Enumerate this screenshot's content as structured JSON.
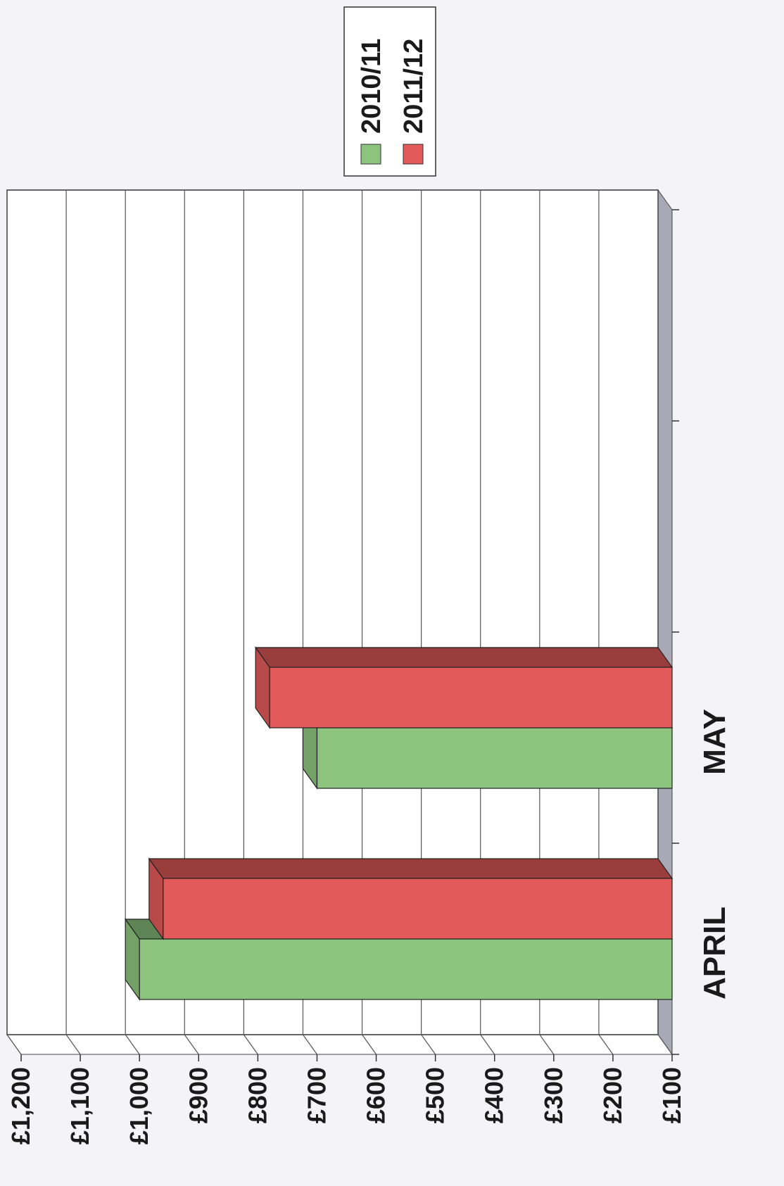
{
  "chart_data": {
    "type": "bar",
    "orientation": "rotated-90-clockwise",
    "style": "3d",
    "categories": [
      "APRIL",
      "MAY"
    ],
    "series": [
      {
        "name": "2010/11",
        "values": [
          1000,
          700
        ],
        "color": "#8cc47e"
      },
      {
        "name": "2011/12",
        "values": [
          960,
          780
        ],
        "color": "#e25a5a"
      }
    ],
    "axis": {
      "ylim": [
        100,
        1200
      ],
      "ticks": [
        100,
        200,
        300,
        400,
        500,
        600,
        700,
        800,
        900,
        1000,
        1100,
        1200
      ],
      "tick_labels": [
        "£100",
        "£200",
        "£300",
        "£400",
        "£500",
        "£600",
        "£700",
        "£800",
        "£900",
        "£1,000",
        "£1,100",
        "£1,200"
      ],
      "slots": 4
    },
    "grid": true,
    "legend": {
      "placement": "top-right",
      "entries": [
        {
          "label": "2010/11",
          "color": "#8cc47e"
        },
        {
          "label": "2011/12",
          "color": "#e25a5a"
        }
      ]
    }
  }
}
